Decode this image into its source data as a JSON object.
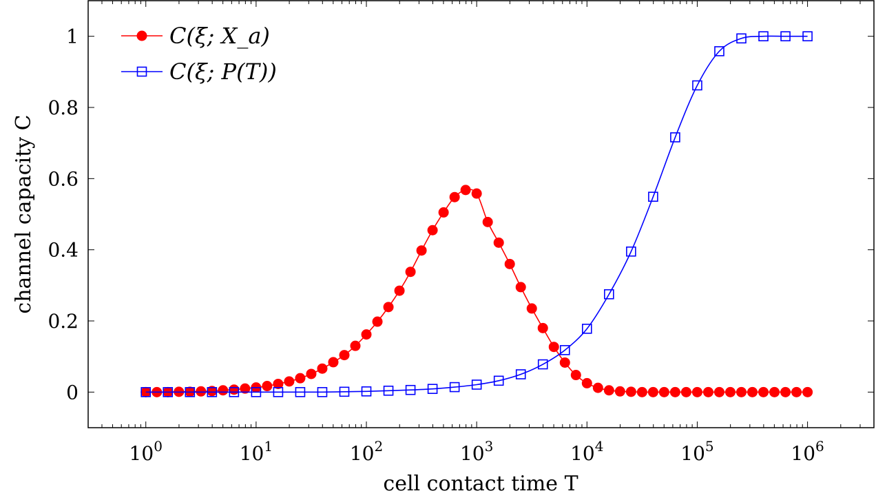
{
  "chart_data": {
    "type": "line",
    "xscale": "log",
    "xlabel": "cell contact time T",
    "ylabel": "channel capacity C",
    "xlim": [
      0.3,
      4000000
    ],
    "ylim": [
      -0.1,
      1.1
    ],
    "xticks": [
      1,
      10,
      100,
      1000,
      10000,
      100000,
      1000000
    ],
    "yticks": [
      0,
      0.2,
      0.4,
      0.6,
      0.8,
      1
    ],
    "ytick_labels": [
      "0",
      "0.2",
      "0.4",
      "0.6",
      "0.8",
      "1"
    ],
    "legend_position": "top-left",
    "series": [
      {
        "name": "C(ξ; X_a)",
        "color": "#ff0000",
        "marker": "filled-circle",
        "x": [
          1,
          1.259,
          1.585,
          1.995,
          2.512,
          3.162,
          3.981,
          5.012,
          6.31,
          7.943,
          10,
          12.59,
          15.85,
          19.95,
          25.12,
          31.62,
          39.81,
          50.12,
          63.1,
          79.43,
          100,
          125.9,
          158.5,
          199.5,
          251.2,
          316.2,
          398.1,
          501.2,
          631,
          794.3,
          1000,
          1259,
          1585,
          1995,
          2512,
          3162,
          3981,
          5012,
          6310,
          7943,
          10000,
          12589,
          15849,
          19953,
          25119,
          31623,
          39811,
          50119,
          63096,
          79433,
          100000,
          125893,
          158489,
          199526,
          251189,
          316228,
          398107,
          501187,
          630957,
          794328,
          1000000
        ],
        "y": [
          0.0,
          0.0,
          0.0,
          0.001,
          0.001,
          0.002,
          0.003,
          0.005,
          0.007,
          0.01,
          0.013,
          0.017,
          0.023,
          0.03,
          0.039,
          0.051,
          0.066,
          0.084,
          0.104,
          0.13,
          0.162,
          0.198,
          0.239,
          0.285,
          0.338,
          0.398,
          0.455,
          0.505,
          0.548,
          0.568,
          0.558,
          0.478,
          0.42,
          0.36,
          0.295,
          0.235,
          0.18,
          0.127,
          0.083,
          0.048,
          0.025,
          0.012,
          0.005,
          0.002,
          0.001,
          0.0,
          0.0,
          0.0,
          0.0,
          0.0,
          0.0,
          0.0,
          0.0,
          0.0,
          0.0,
          0.0,
          0.0,
          0.0,
          0.0,
          0.0,
          0.0
        ]
      },
      {
        "name": "C(ξ; P(T))",
        "color": "#0000ff",
        "marker": "open-square",
        "x": [
          1,
          1.585,
          2.512,
          3.981,
          6.31,
          10,
          15.85,
          25.12,
          39.81,
          63.1,
          100,
          158.5,
          251.2,
          398.1,
          631,
          1000,
          1585,
          2512,
          3981,
          6310,
          10000,
          15849,
          25119,
          39811,
          63096,
          100000,
          158489,
          251189,
          398107,
          630957,
          1000000
        ],
        "y": [
          0.0,
          0.0,
          0.0,
          0.0,
          0.0,
          0.0,
          0.0,
          0.0,
          0.0,
          0.001,
          0.002,
          0.004,
          0.006,
          0.009,
          0.014,
          0.021,
          0.032,
          0.05,
          0.078,
          0.118,
          0.178,
          0.275,
          0.395,
          0.549,
          0.716,
          0.862,
          0.958,
          0.994,
          1.0,
          1.0,
          1.0
        ]
      }
    ]
  }
}
